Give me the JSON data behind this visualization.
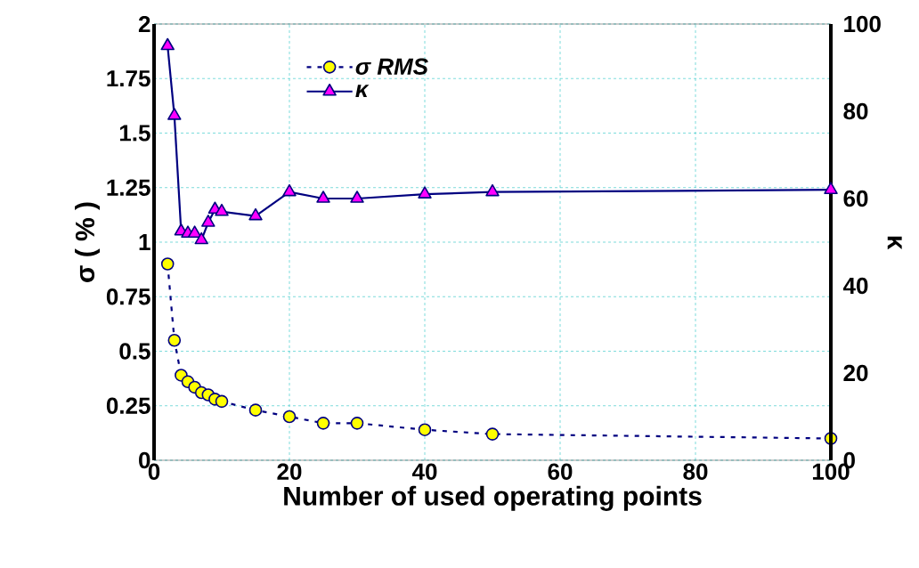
{
  "chart_data": {
    "type": "line",
    "xlabel": "Number of used operating points",
    "ylabel": "σ ( % )",
    "y2label": "κ",
    "xlim": [
      0,
      100
    ],
    "xticks": [
      0,
      20,
      40,
      60,
      80,
      100
    ],
    "ylim": [
      0,
      2
    ],
    "yticks": [
      0,
      0.25,
      0.5,
      0.75,
      1,
      1.25,
      1.5,
      1.75,
      2
    ],
    "y2lim": [
      0,
      100
    ],
    "y2ticks": [
      0,
      20,
      40,
      60,
      80,
      100
    ],
    "grid": true,
    "legend": "top left",
    "series": [
      {
        "name": "σ RMS",
        "color": "#ffff00",
        "marker": "circle",
        "line_style": "dashed",
        "axis": "y",
        "x": [
          2,
          3,
          4,
          5,
          6,
          7,
          8,
          9,
          10,
          15,
          20,
          25,
          30,
          40,
          50,
          100
        ],
        "values": [
          0.9,
          0.55,
          0.39,
          0.36,
          0.335,
          0.31,
          0.3,
          0.28,
          0.27,
          0.23,
          0.2,
          0.17,
          0.17,
          0.14,
          0.12,
          0.1
        ]
      },
      {
        "name": "κ",
        "color": "#ff00ff",
        "marker": "triangle",
        "line_style": "solid",
        "axis": "y2",
        "x": [
          2,
          3,
          4,
          5,
          6,
          7,
          8,
          9,
          10,
          15,
          20,
          25,
          30,
          40,
          50,
          100
        ],
        "values": [
          95,
          79,
          52.5,
          52,
          52,
          50.5,
          54.5,
          57.5,
          57,
          56,
          61.5,
          60,
          60,
          61,
          61.5,
          62
        ]
      }
    ]
  }
}
